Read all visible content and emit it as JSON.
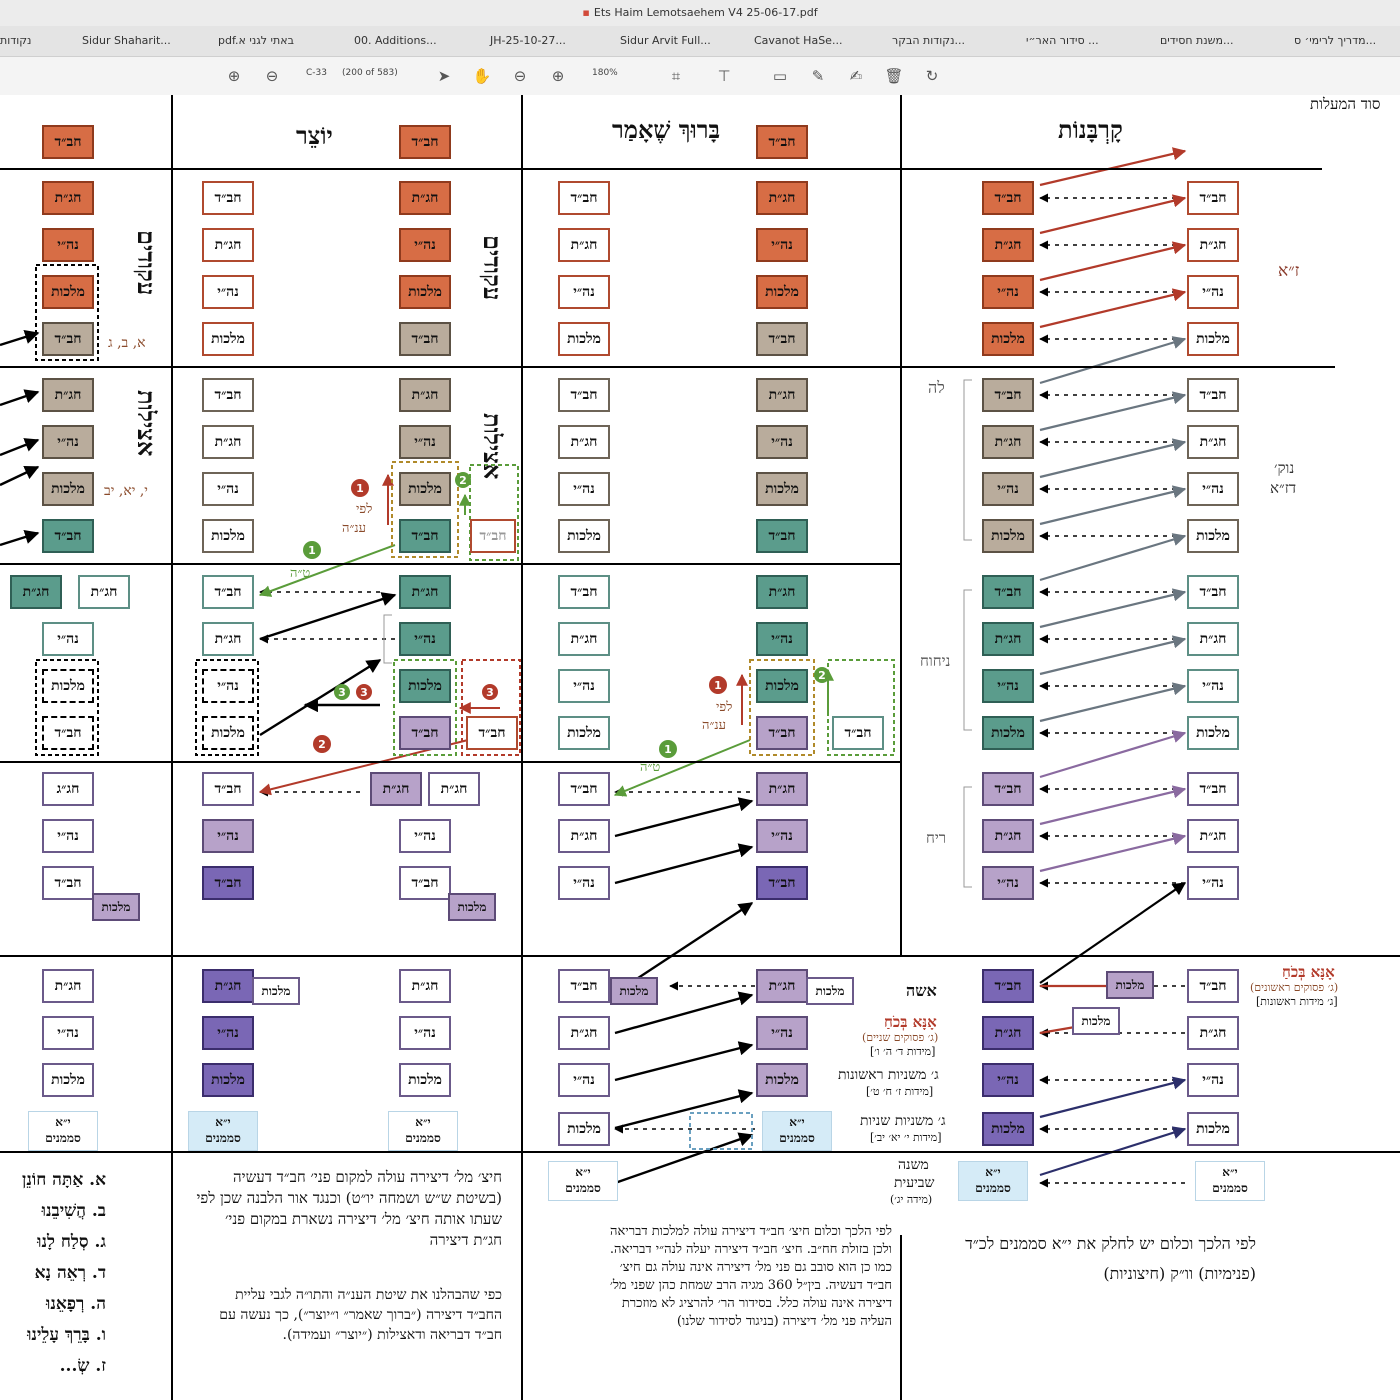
{
  "window": {
    "title": "Ets Haim Lemotsaehem V4 25-06-17.pdf"
  },
  "tabs": [
    "נקודות",
    "Sidur Shaharit...",
    "pdf.באתי לגני א",
    "00. Additions...",
    "JH-25-10-27...",
    "Sidur Arvit Full...",
    "Cavanot HaSe...",
    "נקודות הבקר...",
    "סידור האר״י ...",
    "משנת חסידים...",
    "מדריך לרימי׳ ס..."
  ],
  "toolbar": {
    "page_input": "C-33",
    "page_count": "(200 of 583)",
    "zoom": "180%"
  },
  "columns": {
    "korbanot": "קָרְבָּנוֹת",
    "baruch": "בָּרוּךְ שֶׁאָמַר",
    "yotzer": "יוֹצֵר"
  },
  "sections": {
    "akudim": "עקודים",
    "atzilut": "אצילות",
    "akudim_right": "עקודים",
    "atzilut_right": "אצילות"
  },
  "boxes": {
    "chabad": "חב״ד",
    "chagat": "חג״ת",
    "nehi": "נה״י",
    "malchut": "מלכות",
    "chagag": "חג״ג",
    "yud_alef": "י״א",
    "samemanim": "סממנים"
  },
  "side_labels": {
    "za": "ז״א",
    "leah": "לה",
    "nukva": "נוק׳",
    "dza": "דז״א",
    "nihoach": "ניחוח",
    "reiach": "ריח",
    "isha": "אשה",
    "ana_bekoach_1": "אָנָּא בְּכֹחַ",
    "ana_sub_1": "(ג׳ פסוקים ראשונים)",
    "ana_sub_1b": "[ג׳ מידות ראשונות]",
    "ana_bekoach_2": "אָנָּא בְּכֹחַ",
    "ana_sub_2": "(ג׳ פסוקים שניים)",
    "ana_sub_2b": "[מידות ד׳ ה׳ ו׳]",
    "mishnayot_1": "ג׳ משניות ראשונות",
    "mishnayot_1b": "[מידות ז׳ ח׳ ט׳]",
    "mishnayot_2": "ג׳ משניות שניות",
    "mishnayot_2b": "[מידות י׳ יא׳ יב׳]",
    "mishna": "משנה",
    "shviit": "שביעית",
    "mida": "(מידה יג׳)",
    "left_letters_1": "א, ב, ג",
    "left_letters_2": "י, יא, יב",
    "lefi": "לפי",
    "ana": "ענ״ה",
    "ta": "ט״ה",
    "top_right": "סוד המעלות"
  },
  "paragraphs": {
    "korbanot_note": "לפי הלכך וכלום יש לחלק את י״א סממנים לכ״ד (פנימיות) וו״ק (חיצוניות)",
    "baruch_note": "לפי הלכך וכלום חיצ׳ חב״ד דיצירה עולה למלכות דבריאה ולכן בזולת חח״ב. חיצ׳ חב״ד דיצירה יעלה לנה״י דבריאה. כמו כן הוא סובב גם פני מל׳ דיצירה אינה עולה גם חיצ׳ חב״ד דעשיה. בין״ל 360 מגיה הרב שמחת כהן שפני מל׳ דיצירה אינה עולה כלל. בסידור הר׳ להרציג לא מוזכרת העליה פני מל׳ דיצירה (בניגוד לסידור שלנו)",
    "yotzer_note": "חיצ׳ מל׳ דיצירה עולה למקום פני׳ חב״ד דעשיה (בשיטת ש״ש ושמחה יו״ט) וכנגד אור הלבנה שכן לפי שעתו אותה חיצ׳ מל׳ דיצירה נשארת במקום פני׳ חג״ת דיצירה",
    "yotzer_note_2": "כפי שהבהלנו את שיטת הענ״ה והתו״ה לגבי עליית החב״ד דיצירה (״ברוך שאמר״ ו״יוצר״), כך נעשה עם חב״ד דבריאה ודאצילות (״יוצר״ ועמידה).",
    "amida_list": [
      "א. אַתָּה חוֹנֵן",
      "ב. הֲשִׁיבֵנוּ",
      "ג. סְלַח לָנוּ",
      "ד. רְאֵה נָא",
      "ה. רְפָאֵנוּ",
      "ו. בָּרֵךְ עָלֵינוּ",
      "ז. שְׂ..."
    ]
  },
  "colors": {
    "orange": "#d76d45",
    "beige": "#b9ac9c",
    "green": "#5b9c8c",
    "lilac": "#b7a2c9",
    "violet": "#7a67b5",
    "arrow_red": "#b23a2a",
    "arrow_green": "#5a9c3a",
    "arrow_gray": "#6a7680",
    "arrow_navy": "#2c2f6b"
  }
}
